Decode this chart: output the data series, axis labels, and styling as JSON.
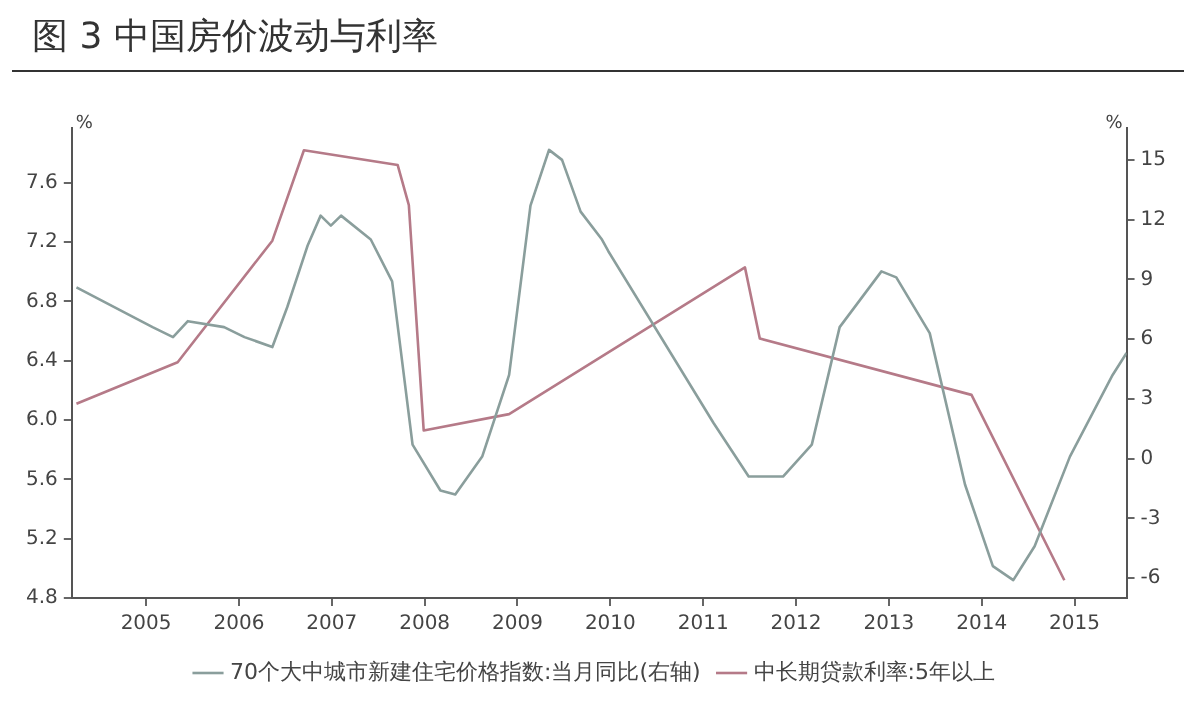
{
  "chart_data": {
    "type": "line",
    "title": "图 3  中国房价波动与利率",
    "ylabel": "%",
    "y2label": "%",
    "xlim": [
      2004.2,
      2015.56
    ],
    "xticks": [
      2005,
      2006,
      2007,
      2008,
      2009,
      2010,
      2011,
      2012,
      2013,
      2014,
      2015
    ],
    "ylim": [
      4.8,
      7.97
    ],
    "yticks": [
      4.8,
      5.2,
      5.6,
      {
        "value": 6,
        "label": "6.0"
      },
      6.4,
      6.8,
      7.2,
      7.6
    ],
    "y2lim": [
      -7.0,
      16.6
    ],
    "y2ticks": [
      -6,
      -3,
      0,
      3,
      6,
      9,
      12,
      15
    ],
    "grid": false,
    "legend": "bottom",
    "marker": "none",
    "line_style": "solid",
    "series": [
      {
        "name": "70个大中城市新建住宅价格指数:当月同比(右轴)",
        "color": "#8a9e9c",
        "axis": "y2",
        "x": [
          2004.25,
          2005.07,
          2005.29,
          2005.45,
          2005.84,
          2006.06,
          2006.36,
          2006.52,
          2006.74,
          2006.88,
          2006.99,
          2007.1,
          2007.42,
          2007.65,
          2007.87,
          2008.17,
          2008.33,
          2008.62,
          2008.91,
          2009.14,
          2009.34,
          2009.48,
          2009.68,
          2009.91,
          2009.98,
          2011.11,
          2011.49,
          2011.86,
          2012.17,
          2012.47,
          2012.92,
          2013.08,
          2013.44,
          2013.82,
          2014.12,
          2014.34,
          2014.57,
          2014.95,
          2015.41,
          2015.56
        ],
        "values": [
          8.6,
          6.6,
          6.1,
          6.9,
          6.6,
          6.1,
          5.6,
          7.6,
          10.7,
          12.2,
          11.7,
          12.2,
          11.0,
          8.9,
          0.7,
          -1.6,
          -1.8,
          0.1,
          4.2,
          12.7,
          15.5,
          15.0,
          12.4,
          11.0,
          10.4,
          1.8,
          -0.9,
          -0.9,
          0.7,
          6.6,
          9.4,
          9.1,
          6.3,
          -1.3,
          -5.4,
          -6.1,
          -4.4,
          0.1,
          4.2,
          5.3
        ]
      },
      {
        "name": "中长期贷款利率:5年以上",
        "color": "#b57a88",
        "x": [
          2004.25,
          2005.34,
          2006.36,
          2006.7,
          2007.71,
          2007.83,
          2007.99,
          2008.91,
          2011.45,
          2011.61,
          2013.89,
          2014.89
        ],
        "values": [
          6.11,
          6.39,
          7.21,
          7.82,
          7.72,
          7.45,
          5.93,
          6.04,
          7.03,
          6.55,
          6.17,
          4.92
        ]
      }
    ]
  }
}
